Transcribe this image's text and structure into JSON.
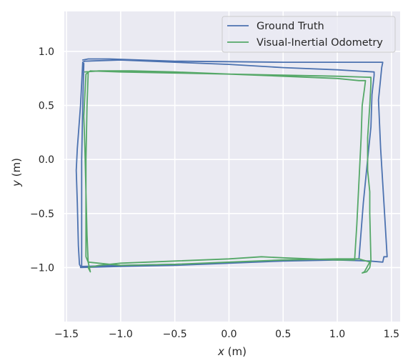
{
  "chart_data": {
    "type": "line",
    "title": "",
    "xlabel": {
      "var": "x",
      "unit": " (m)"
    },
    "ylabel": {
      "var": "y",
      "unit": " (m)"
    },
    "xlim": [
      -1.52,
      1.58
    ],
    "ylim": [
      -1.5,
      1.37
    ],
    "xticks": [
      -1.5,
      -1.0,
      -0.5,
      0.0,
      0.5,
      1.0,
      1.5
    ],
    "xtick_labels": [
      "−1.5",
      "−1.0",
      "−0.5",
      "0.0",
      "0.5",
      "1.0",
      "1.5"
    ],
    "yticks": [
      1.0,
      0.5,
      0.0,
      -0.5,
      -1.0
    ],
    "ytick_labels": [
      "1.0",
      "0.5",
      "0.0",
      "−0.5",
      "−1.0"
    ],
    "grid": true,
    "legend_position": "top-right",
    "series": [
      {
        "name": "Ground Truth",
        "color": "#4c72b0",
        "points": [
          [
            -1.35,
            0.92
          ],
          [
            -1.3,
            0.93
          ],
          [
            -1.1,
            0.93
          ],
          [
            -0.5,
            0.91
          ],
          [
            0.5,
            0.9
          ],
          [
            1.0,
            0.9
          ],
          [
            1.42,
            0.9
          ],
          [
            1.41,
            0.85
          ],
          [
            1.38,
            0.55
          ],
          [
            1.4,
            0.1
          ],
          [
            1.43,
            -0.4
          ],
          [
            1.46,
            -0.9
          ],
          [
            1.43,
            -0.9
          ],
          [
            1.42,
            -0.95
          ],
          [
            1.3,
            -0.94
          ],
          [
            1.0,
            -0.93
          ],
          [
            0.5,
            -0.94
          ],
          [
            0.0,
            -0.96
          ],
          [
            -0.5,
            -0.97
          ],
          [
            -1.0,
            -0.98
          ],
          [
            -1.37,
            -0.99
          ],
          [
            -1.38,
            -0.97
          ],
          [
            -1.39,
            -0.8
          ],
          [
            -1.4,
            -0.4
          ],
          [
            -1.41,
            -0.1
          ],
          [
            -1.4,
            0.1
          ],
          [
            -1.37,
            0.5
          ],
          [
            -1.35,
            0.9
          ],
          [
            -1.33,
            0.91
          ],
          [
            -1.0,
            0.92
          ],
          [
            -0.5,
            0.9
          ],
          [
            0.0,
            0.88
          ],
          [
            0.5,
            0.85
          ],
          [
            1.0,
            0.83
          ],
          [
            1.34,
            0.81
          ],
          [
            1.34,
            0.78
          ],
          [
            1.32,
            0.6
          ],
          [
            1.31,
            0.3
          ],
          [
            1.28,
            0.0
          ],
          [
            1.24,
            -0.4
          ],
          [
            1.2,
            -0.92
          ],
          [
            1.0,
            -0.93
          ],
          [
            0.5,
            -0.94
          ],
          [
            0.0,
            -0.96
          ],
          [
            -0.5,
            -0.98
          ],
          [
            -1.0,
            -0.99
          ],
          [
            -1.37,
            -1.0
          ],
          [
            -1.36,
            -0.98
          ],
          [
            -1.36,
            -0.5
          ],
          [
            -1.36,
            0.0
          ],
          [
            -1.35,
            0.5
          ],
          [
            -1.34,
            0.89
          ]
        ]
      },
      {
        "name": "Visual-Inertial Odometry",
        "color": "#55a868",
        "points": [
          [
            -1.33,
            0.81
          ],
          [
            -1.2,
            0.82
          ],
          [
            -0.9,
            0.82
          ],
          [
            -0.5,
            0.81
          ],
          [
            0.0,
            0.79
          ],
          [
            0.5,
            0.77
          ],
          [
            1.0,
            0.75
          ],
          [
            1.2,
            0.73
          ],
          [
            1.26,
            0.73
          ],
          [
            1.25,
            0.65
          ],
          [
            1.23,
            0.5
          ],
          [
            1.22,
            0.2
          ],
          [
            1.2,
            -0.2
          ],
          [
            1.18,
            -0.6
          ],
          [
            1.16,
            -0.93
          ],
          [
            1.0,
            -0.93
          ],
          [
            0.5,
            -0.91
          ],
          [
            0.3,
            -0.9
          ],
          [
            0.0,
            -0.92
          ],
          [
            -0.5,
            -0.94
          ],
          [
            -1.0,
            -0.96
          ],
          [
            -1.2,
            -0.98
          ],
          [
            -1.3,
            -1.0
          ],
          [
            -1.28,
            -1.04
          ],
          [
            -1.3,
            -0.95
          ],
          [
            -1.31,
            -0.7
          ],
          [
            -1.32,
            -0.3
          ],
          [
            -1.33,
            0.1
          ],
          [
            -1.34,
            0.4
          ],
          [
            -1.33,
            0.6
          ],
          [
            -1.32,
            0.79
          ],
          [
            -1.28,
            0.82
          ],
          [
            -1.0,
            0.81
          ],
          [
            -0.5,
            0.8
          ],
          [
            0.0,
            0.79
          ],
          [
            0.5,
            0.78
          ],
          [
            1.0,
            0.77
          ],
          [
            1.31,
            0.76
          ],
          [
            1.31,
            0.7
          ],
          [
            1.3,
            0.5
          ],
          [
            1.28,
            0.2
          ],
          [
            1.28,
            -0.1
          ],
          [
            1.3,
            -0.3
          ],
          [
            1.3,
            -0.5
          ],
          [
            1.31,
            -0.93
          ],
          [
            1.3,
            -1.0
          ],
          [
            1.27,
            -1.04
          ],
          [
            1.23,
            -1.05
          ],
          [
            1.25,
            -1.04
          ],
          [
            1.3,
            -0.95
          ],
          [
            1.2,
            -0.92
          ],
          [
            1.0,
            -0.92
          ],
          [
            0.5,
            -0.93
          ],
          [
            0.0,
            -0.95
          ],
          [
            -0.5,
            -0.97
          ],
          [
            -1.0,
            -0.98
          ],
          [
            -1.3,
            -0.95
          ],
          [
            -1.32,
            -0.9
          ],
          [
            -1.32,
            -0.5
          ],
          [
            -1.32,
            0.0
          ],
          [
            -1.31,
            0.5
          ],
          [
            -1.3,
            0.8
          ]
        ]
      }
    ]
  }
}
